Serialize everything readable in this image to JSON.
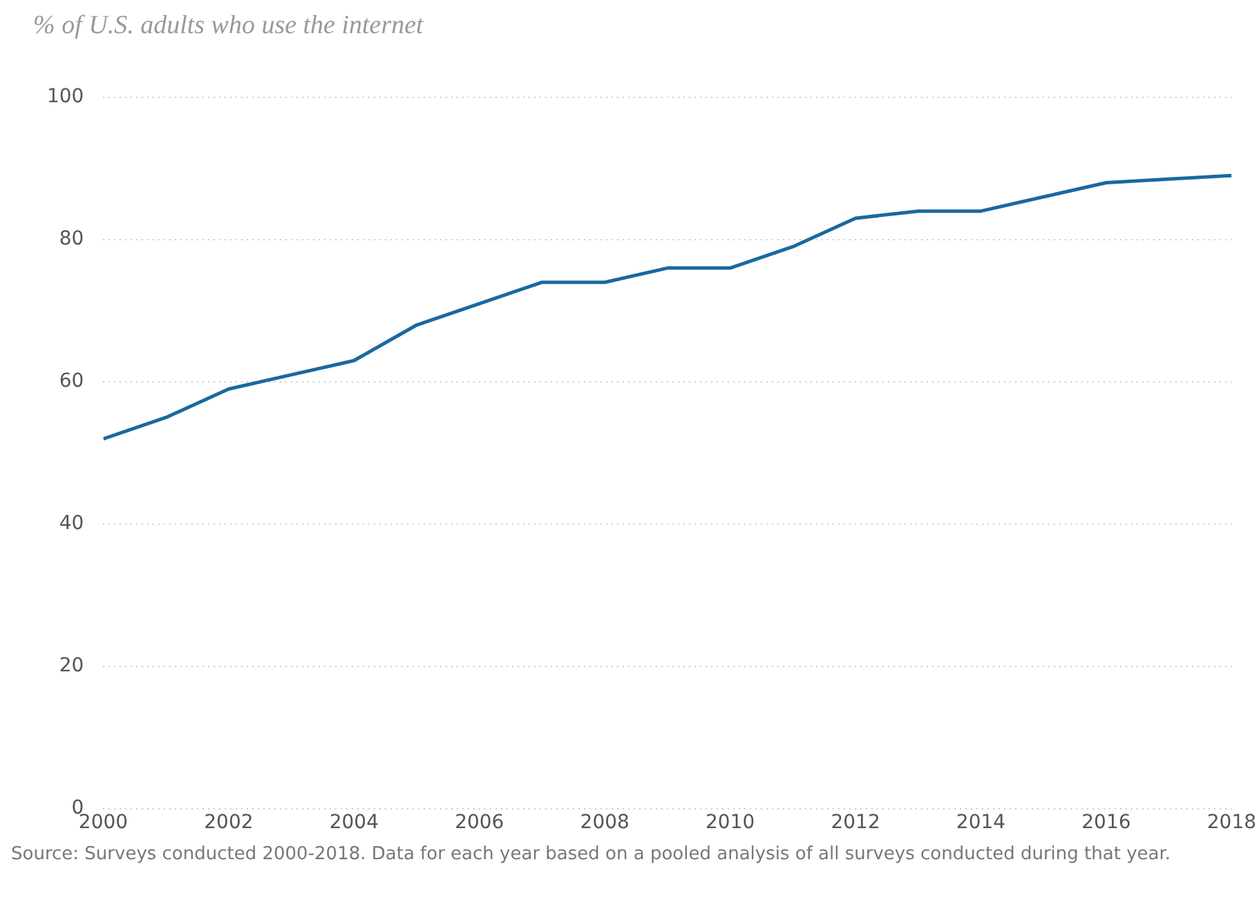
{
  "chart_data": {
    "type": "line",
    "title": "% of U.S. adults who use the internet",
    "x": [
      2000,
      2001,
      2002,
      2003,
      2004,
      2005,
      2006,
      2007,
      2008,
      2009,
      2010,
      2011,
      2012,
      2013,
      2014,
      2015,
      2016,
      2017,
      2018
    ],
    "series": [
      {
        "color": "#19699e",
        "values": [
          52,
          55,
          59,
          61,
          63,
          68,
          71,
          74,
          74,
          76,
          76,
          79,
          83,
          84,
          84,
          86,
          88,
          88.5,
          89
        ]
      }
    ],
    "xlim": [
      2000,
      2018
    ],
    "xticks": [
      2000,
      2002,
      2004,
      2006,
      2008,
      2010,
      2012,
      2014,
      2016,
      2018
    ],
    "ylim": [
      0,
      100
    ],
    "yticks": [
      0,
      20,
      40,
      60,
      80,
      100
    ],
    "grid": "y",
    "legend": false,
    "marker": "none",
    "line_style": "solid",
    "annotations": [
      "Source: Surveys conducted 2000-2018. Data for each year based on a pooled analysis of all surveys conducted during that year."
    ]
  }
}
